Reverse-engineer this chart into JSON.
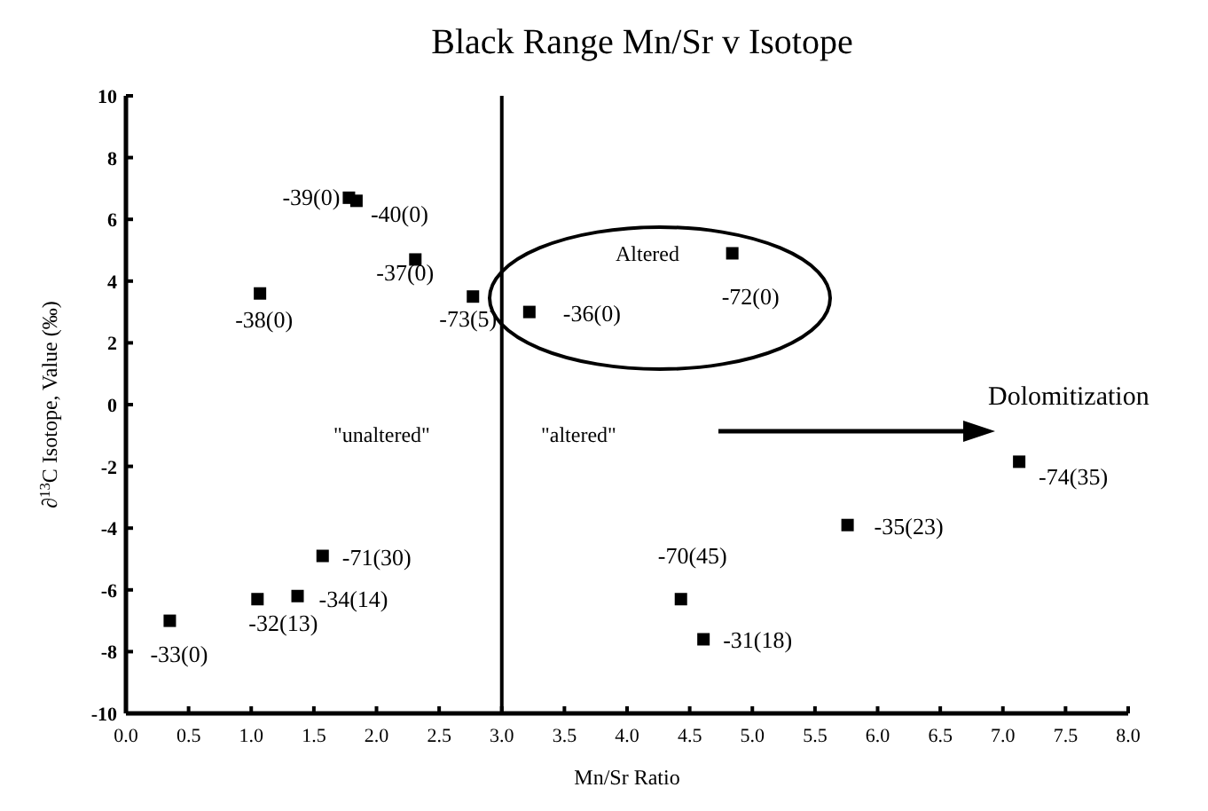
{
  "chart_data": {
    "type": "scatter",
    "title": "Black Range Mn/Sr v Isotope",
    "xlabel": "Mn/Sr Ratio",
    "ylabel": "∂$^{13}$C Isotope, Value (‰)",
    "series": [
      {
        "color": "#000000",
        "x": [
          1.78,
          1.84,
          2.31,
          1.07,
          2.77,
          3.22,
          4.84,
          7.13,
          5.76,
          1.57,
          1.37,
          1.05,
          0.35,
          4.43,
          4.61
        ],
        "values": [
          6.7,
          6.6,
          4.7,
          3.6,
          3.5,
          3.0,
          4.9,
          -1.85,
          -3.9,
          -4.9,
          -6.2,
          -6.3,
          -7.0,
          -6.3,
          -7.6
        ],
        "value_labels": [
          "-39(0)",
          "-40(0)",
          "-37(0)",
          "-38(0)",
          "-73(5)",
          "-36(0)",
          "-72(0)",
          "-74(35)",
          "-35(23)",
          "-71(30)",
          "-34(14)",
          "-32(13)",
          "-33(0)",
          "-70(45)",
          "-31(18)"
        ]
      }
    ],
    "marker": "square",
    "xlim": [
      0,
      8
    ],
    "ylim": [
      -10,
      10
    ],
    "xticks": [
      {
        "value": 0,
        "label": "0.0"
      },
      {
        "value": 0.5,
        "label": "0.5"
      },
      {
        "value": 1,
        "label": "1.0"
      },
      {
        "value": 1.5,
        "label": "1.5"
      },
      {
        "value": 2,
        "label": "2.0"
      },
      {
        "value": 2.5,
        "label": "2.5"
      },
      {
        "value": 3,
        "label": "3.0"
      },
      {
        "value": 3.5,
        "label": "3.5"
      },
      {
        "value": 4,
        "label": "4.0"
      },
      {
        "value": 4.5,
        "label": "4.5"
      },
      {
        "value": 5,
        "label": "5.0"
      },
      {
        "value": 5.5,
        "label": "5.5"
      },
      {
        "value": 6,
        "label": "6.0"
      },
      {
        "value": 6.5,
        "label": "6.5"
      },
      {
        "value": 7,
        "label": "7.0"
      },
      {
        "value": 7.5,
        "label": "7.5"
      },
      {
        "value": 8,
        "label": "8.0"
      }
    ],
    "yticks": [
      -10,
      -8,
      -6,
      -4,
      -2,
      0,
      2,
      4,
      6,
      8,
      10
    ],
    "ref_lines": [
      {
        "axis": "x",
        "value": 3,
        "color": "#000000"
      }
    ],
    "annotations": [
      "\"unaltered\"",
      "\"altered\"",
      "Altered",
      "Dolomitization"
    ],
    "grid": false
  }
}
